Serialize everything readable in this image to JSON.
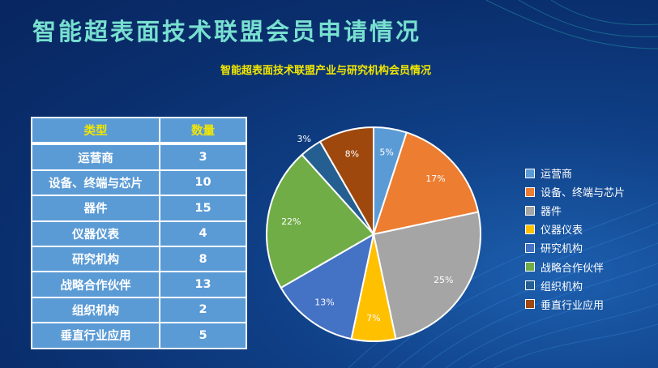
{
  "page": {
    "title": "智能超表面技术联盟会员申请情况"
  },
  "table": {
    "headers": [
      "类型",
      "数量"
    ],
    "rows": [
      {
        "type": "运营商",
        "count": "3"
      },
      {
        "type": "设备、终端与芯片",
        "count": "10"
      },
      {
        "type": "器件",
        "count": "15"
      },
      {
        "type": "仪器仪表",
        "count": "4"
      },
      {
        "type": "研究机构",
        "count": "8"
      },
      {
        "type": "战略合作伙伴",
        "count": "13"
      },
      {
        "type": "组织机构",
        "count": "2"
      },
      {
        "type": "垂直行业应用",
        "count": "5"
      }
    ]
  },
  "chart_data": {
    "type": "pie",
    "title": "智能超表面技术联盟产业与研究机构会员情况",
    "categories": [
      "运营商",
      "设备、终端与芯片",
      "器件",
      "仪器仪表",
      "研究机构",
      "战略合作伙伴",
      "组织机构",
      "垂直行业应用"
    ],
    "values": [
      3,
      10,
      15,
      4,
      8,
      13,
      2,
      5
    ],
    "data_labels": [
      "5%",
      "17%",
      "25%",
      "7%",
      "13%",
      "22%",
      "3%",
      "8%"
    ],
    "colors": [
      "#5b9bd5",
      "#ed7d31",
      "#a5a5a5",
      "#ffc000",
      "#4472c4",
      "#70ad47",
      "#255e91",
      "#9e480e"
    ],
    "legend_position": "right"
  }
}
